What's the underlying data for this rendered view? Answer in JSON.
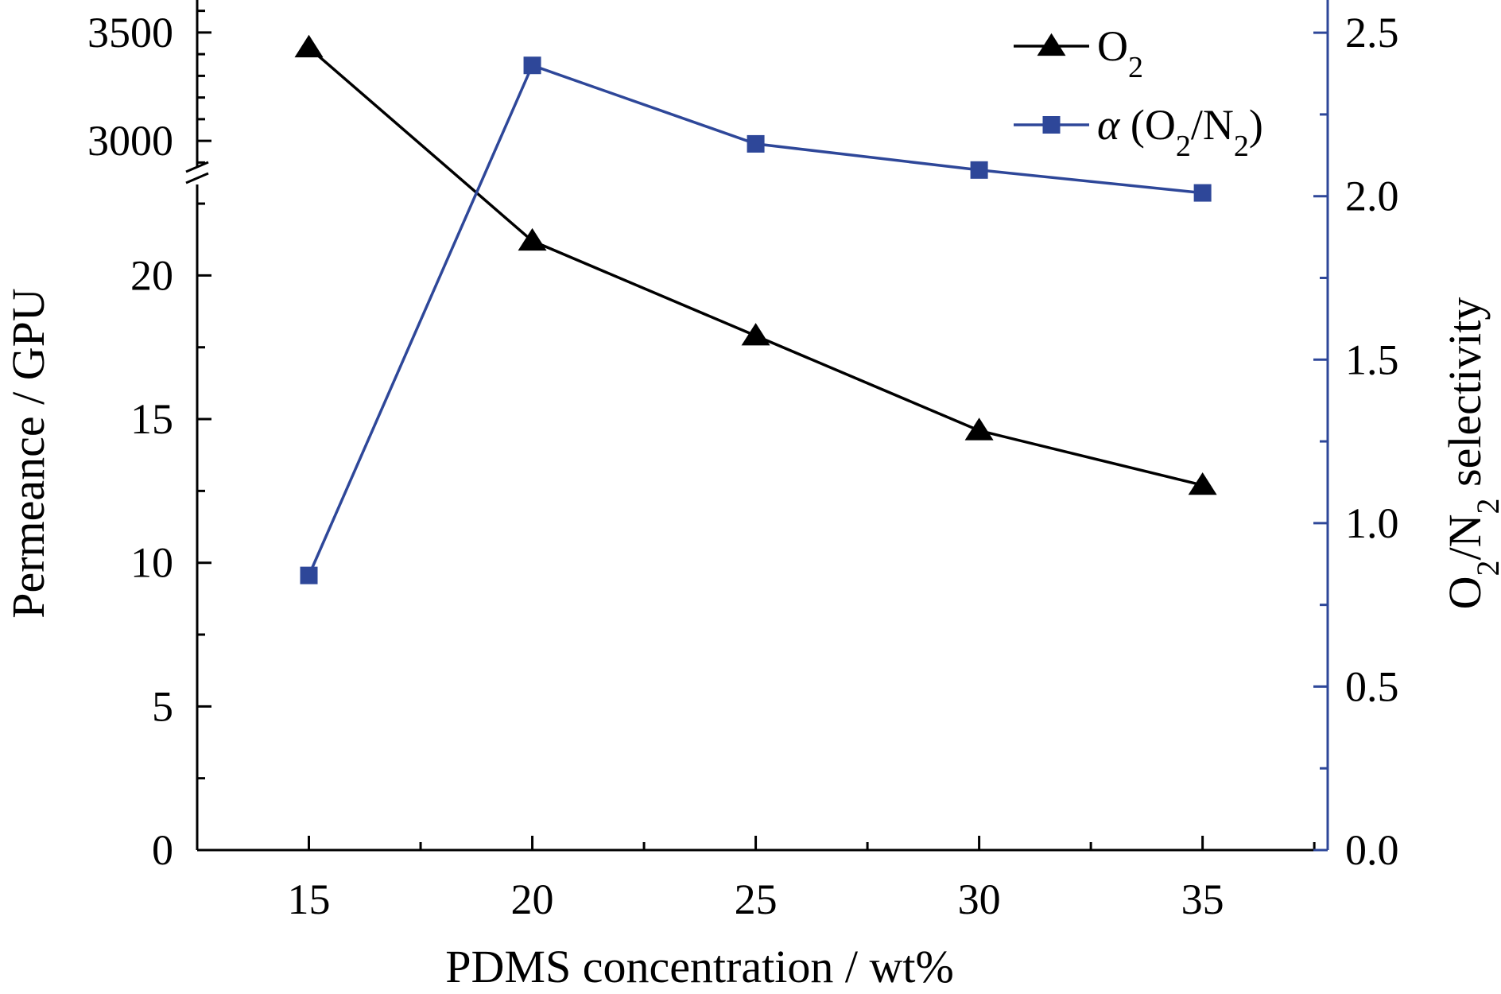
{
  "chart_data": {
    "type": "line",
    "xlabel": "PDMS concentration / wt%",
    "ylabel_left": "Permeance / GPU",
    "ylabel_right": "O₂/N₂ selectivity",
    "x": [
      15,
      20,
      25,
      30,
      35
    ],
    "xlim": [
      12.5,
      37.8
    ],
    "x_ticks": [
      "15",
      "20",
      "25",
      "30",
      "35"
    ],
    "y_left": {
      "broken": true,
      "lower_range": [
        0,
        23
      ],
      "upper_range": [
        2850,
        3650
      ],
      "lower_ticks": [
        "0",
        "5",
        "10",
        "15",
        "20"
      ],
      "upper_ticks": [
        "3000",
        "3500"
      ]
    },
    "y_right": {
      "range": [
        0,
        2.6
      ],
      "ticks": [
        "0.0",
        "0.5",
        "1.0",
        "1.5",
        "2.0",
        "2.5"
      ]
    },
    "series": [
      {
        "name": "O₂",
        "axis": "left",
        "marker": "triangle",
        "color": "#000000",
        "values": [
          3430,
          21.2,
          17.9,
          14.6,
          12.7
        ]
      },
      {
        "name": "α (O₂/N₂)",
        "axis": "right",
        "marker": "square",
        "color": "#2e4799",
        "values": [
          0.84,
          2.4,
          2.16,
          2.08,
          2.01
        ]
      }
    ],
    "legend": {
      "position": "top-right",
      "entries": [
        {
          "main": "O",
          "sub": "2",
          "tail": ""
        },
        {
          "prefix": "α",
          "main": " (O",
          "sub": "2",
          "mid": "/N",
          "sub2": "2",
          "tail": ")"
        }
      ]
    }
  }
}
